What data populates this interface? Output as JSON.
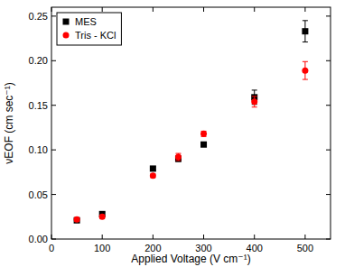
{
  "chart_data": {
    "type": "scatter",
    "x_label": "Applied Voltage (V cm⁻¹)",
    "y_label": "νEOF (cm sec⁻¹)",
    "x": [
      50,
      100,
      200,
      250,
      300,
      400,
      500
    ],
    "series": [
      {
        "name": "MES",
        "color": "#000000",
        "marker": "square",
        "values": [
          0.021,
          0.028,
          0.079,
          0.09,
          0.106,
          0.159,
          0.233
        ],
        "errors": [
          0.002,
          0.002,
          0.002,
          0.003,
          0.002,
          0.008,
          0.012
        ]
      },
      {
        "name": "Tris - KCl",
        "color": "#ff0000",
        "marker": "circle",
        "values": [
          0.022,
          0.025,
          0.071,
          0.092,
          0.118,
          0.154,
          0.189
        ],
        "errors": [
          0.002,
          0.002,
          0.002,
          0.004,
          0.003,
          0.006,
          0.01
        ]
      }
    ],
    "xlim": [
      0,
      550
    ],
    "xticks": [
      0,
      100,
      200,
      300,
      400,
      500
    ],
    "ylim": [
      0,
      0.26
    ],
    "yticks": [
      {
        "value": 0,
        "label": "0.00"
      },
      {
        "value": 0.05,
        "label": "0.05"
      },
      {
        "value": 0.1,
        "label": "0.10"
      },
      {
        "value": 0.15,
        "label": "0.15"
      },
      {
        "value": 0.2,
        "label": "0.20"
      },
      {
        "value": 0.25,
        "label": "0.25"
      }
    ],
    "legend": "top-left",
    "grid": false
  }
}
